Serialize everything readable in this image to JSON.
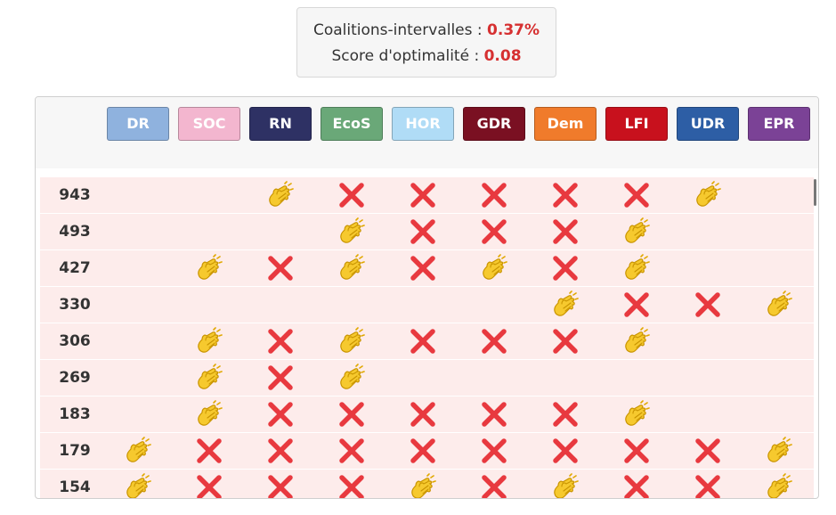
{
  "summary": {
    "coalitions_label": "Coalitions-intervalles :",
    "coalitions_value": "0.37%",
    "score_label": "Score d'optimalité :",
    "score_value": "0.08"
  },
  "parties": [
    {
      "label": "DR",
      "color": "#8fb2de",
      "text_color": "#ffffff"
    },
    {
      "label": "SOC",
      "color": "#f3b6cf",
      "text_color": "#ffffff"
    },
    {
      "label": "RN",
      "color": "#2e3164",
      "text_color": "#ffffff"
    },
    {
      "label": "EcoS",
      "color": "#6aa878",
      "text_color": "#ffffff"
    },
    {
      "label": "HOR",
      "color": "#b0dcf6",
      "text_color": "#ffffff"
    },
    {
      "label": "GDR",
      "color": "#7a1022",
      "text_color": "#ffffff"
    },
    {
      "label": "Dem",
      "color": "#f07b2b",
      "text_color": "#ffffff"
    },
    {
      "label": "LFI",
      "color": "#c8111d",
      "text_color": "#ffffff"
    },
    {
      "label": "UDR",
      "color": "#2d5ea5",
      "text_color": "#ffffff"
    },
    {
      "label": "EPR",
      "color": "#7b4296",
      "text_color": "#ffffff"
    }
  ],
  "rows": [
    {
      "count": "943",
      "cells": [
        "",
        "",
        "clap",
        "x",
        "x",
        "x",
        "x",
        "x",
        "clap",
        ""
      ]
    },
    {
      "count": "493",
      "cells": [
        "",
        "",
        "",
        "clap",
        "x",
        "x",
        "x",
        "clap",
        "",
        ""
      ]
    },
    {
      "count": "427",
      "cells": [
        "",
        "clap",
        "x",
        "clap",
        "x",
        "clap",
        "x",
        "clap",
        "",
        ""
      ]
    },
    {
      "count": "330",
      "cells": [
        "",
        "",
        "",
        "",
        "",
        "",
        "clap",
        "x",
        "x",
        "clap"
      ]
    },
    {
      "count": "306",
      "cells": [
        "",
        "clap",
        "x",
        "clap",
        "x",
        "x",
        "x",
        "clap",
        "",
        ""
      ]
    },
    {
      "count": "269",
      "cells": [
        "",
        "clap",
        "x",
        "clap",
        "",
        "",
        "",
        "",
        "",
        ""
      ]
    },
    {
      "count": "183",
      "cells": [
        "",
        "clap",
        "x",
        "x",
        "x",
        "x",
        "x",
        "clap",
        "",
        ""
      ]
    },
    {
      "count": "179",
      "cells": [
        "clap",
        "x",
        "x",
        "x",
        "x",
        "x",
        "x",
        "x",
        "x",
        "clap"
      ]
    },
    {
      "count": "154",
      "cells": [
        "clap",
        "x",
        "x",
        "x",
        "clap",
        "x",
        "clap",
        "x",
        "x",
        "clap"
      ]
    }
  ],
  "icons": {
    "clap": "clapping-hands-icon",
    "x": "cross-mark-icon"
  },
  "colors": {
    "cross": "#e8393f",
    "clap": "#f6c92e",
    "highlight": "#d63031",
    "row_bg": "#fdeceb"
  }
}
